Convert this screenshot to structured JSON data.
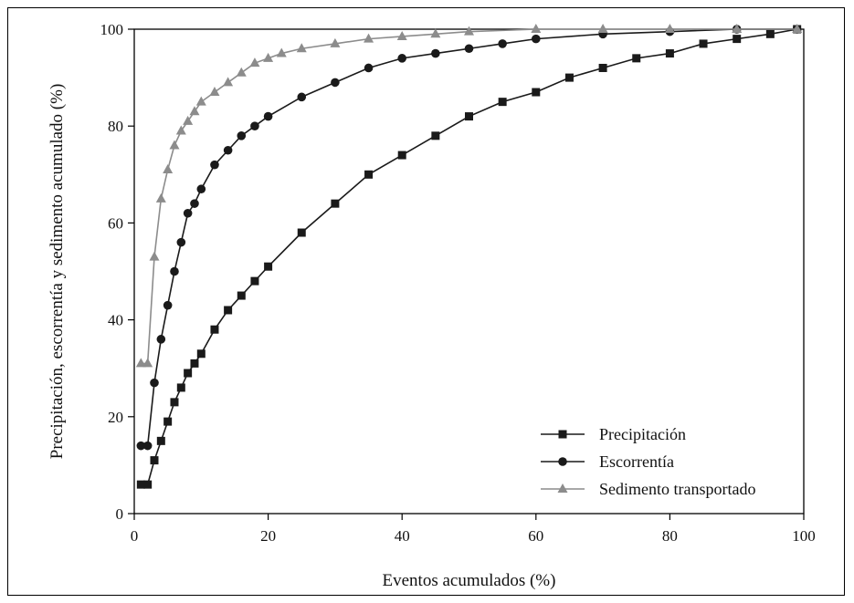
{
  "chart_data": {
    "type": "line",
    "title": "",
    "xlabel": "Eventos acumulados (%)",
    "ylabel": "Precipitación, escorrentía y sedimento acumulado (%)",
    "xlim": [
      0,
      100
    ],
    "ylim": [
      0,
      100
    ],
    "xticks": [
      0,
      20,
      40,
      60,
      80,
      100
    ],
    "yticks": [
      0,
      20,
      40,
      60,
      80,
      100
    ],
    "legend_position": "bottom-right",
    "grid": false,
    "series": [
      {
        "name": "Precipitación",
        "marker": "square",
        "color": "#1a1a1a",
        "x": [
          1,
          2,
          3,
          4,
          5,
          6,
          7,
          8,
          9,
          10,
          12,
          14,
          16,
          18,
          20,
          25,
          30,
          35,
          40,
          45,
          50,
          55,
          60,
          65,
          70,
          75,
          80,
          85,
          90,
          95,
          99
        ],
        "y": [
          6,
          6,
          11,
          15,
          19,
          23,
          26,
          29,
          31,
          33,
          38,
          42,
          45,
          48,
          51,
          58,
          64,
          70,
          74,
          78,
          82,
          85,
          87,
          90,
          92,
          94,
          95,
          97,
          98,
          99,
          100
        ]
      },
      {
        "name": "Escorrentía",
        "marker": "circle",
        "color": "#1a1a1a",
        "x": [
          1,
          2,
          3,
          4,
          5,
          6,
          7,
          8,
          9,
          10,
          12,
          14,
          16,
          18,
          20,
          25,
          30,
          35,
          40,
          45,
          50,
          55,
          60,
          70,
          80,
          90,
          99
        ],
        "y": [
          14,
          14,
          27,
          36,
          43,
          50,
          56,
          62,
          64,
          67,
          72,
          75,
          78,
          80,
          82,
          86,
          89,
          92,
          94,
          95,
          96,
          97,
          98,
          99,
          99.5,
          100,
          100
        ]
      },
      {
        "name": "Sedimento transportado",
        "marker": "triangle",
        "color": "#8c8c8c",
        "x": [
          1,
          2,
          3,
          4,
          5,
          6,
          7,
          8,
          9,
          10,
          12,
          14,
          16,
          18,
          20,
          22,
          25,
          30,
          35,
          40,
          45,
          50,
          60,
          70,
          80,
          90,
          99
        ],
        "y": [
          31,
          31,
          53,
          65,
          71,
          76,
          79,
          81,
          83,
          85,
          87,
          89,
          91,
          93,
          94,
          95,
          96,
          97,
          98,
          98.5,
          99,
          99.5,
          100,
          100,
          100,
          100,
          100
        ]
      }
    ]
  }
}
